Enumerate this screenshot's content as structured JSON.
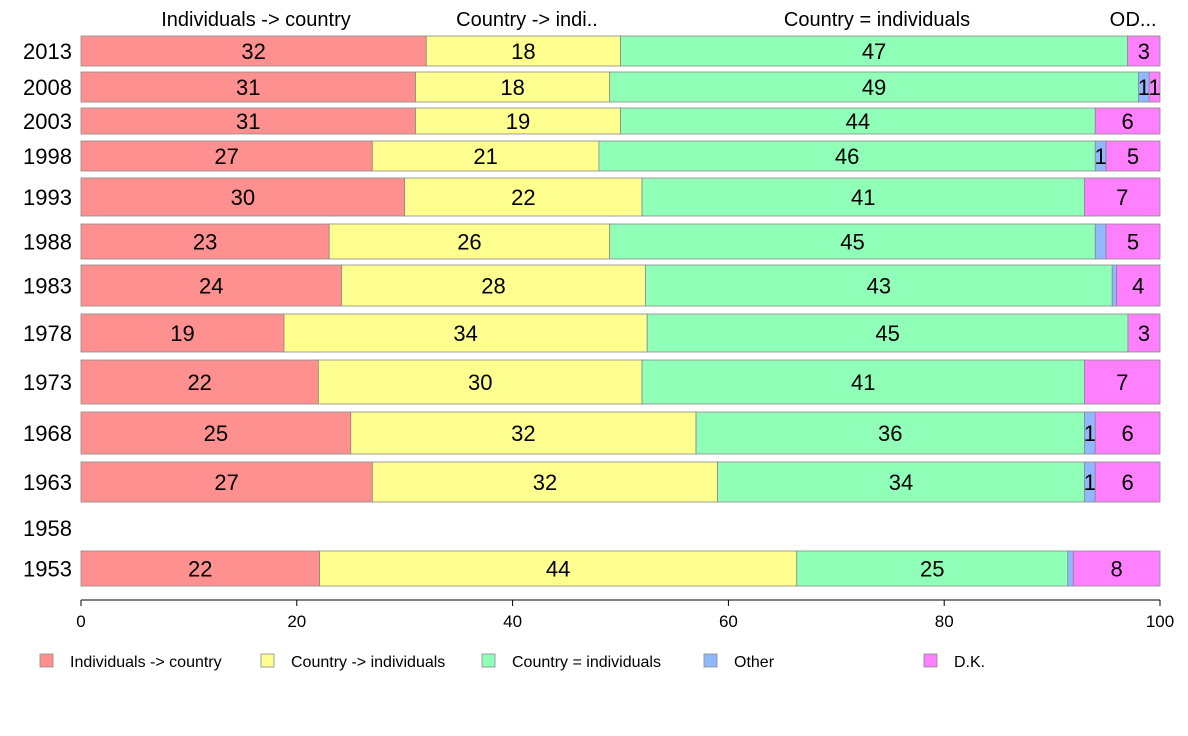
{
  "chart_data": {
    "type": "bar",
    "orientation": "horizontal",
    "stacked": true,
    "categories": [
      "2013",
      "2008",
      "2003",
      "1998",
      "1993",
      "1988",
      "1983",
      "1978",
      "1973",
      "1968",
      "1963",
      "1958",
      "1953"
    ],
    "series": [
      {
        "name": "Individuals -> country",
        "color": "#ff9090",
        "values": [
          32,
          31,
          31,
          27,
          30,
          23,
          24,
          19,
          22,
          25,
          27,
          null,
          22
        ]
      },
      {
        "name": "Country -> individuals",
        "color": "#ffff90",
        "values": [
          18,
          18,
          19,
          21,
          22,
          26,
          28,
          34,
          30,
          32,
          32,
          null,
          44
        ]
      },
      {
        "name": "Country = individuals",
        "color": "#90ffb8",
        "values": [
          47,
          49,
          44,
          46,
          41,
          45,
          43,
          45,
          41,
          36,
          34,
          null,
          25
        ]
      },
      {
        "name": "Other",
        "color": "#90b8ff",
        "values": [
          0,
          1,
          0,
          1,
          0,
          1,
          0.4,
          0,
          0,
          1,
          1,
          null,
          0.5
        ]
      },
      {
        "name": "D.K.",
        "color": "#ff80ff",
        "values": [
          3,
          1,
          6,
          5,
          7,
          5,
          4,
          3,
          7,
          6,
          6,
          null,
          8
        ]
      }
    ],
    "bar_labels": [
      [
        "32",
        "18",
        "47",
        "",
        "3"
      ],
      [
        "31",
        "18",
        "49",
        "1",
        "1"
      ],
      [
        "31",
        "19",
        "44",
        "",
        "6"
      ],
      [
        "27",
        "21",
        "46",
        "1",
        "5"
      ],
      [
        "30",
        "22",
        "41",
        "",
        "7"
      ],
      [
        "23",
        "26",
        "45",
        "",
        "5"
      ],
      [
        "24",
        "28",
        "43",
        "",
        "4"
      ],
      [
        "19",
        "34",
        "45",
        "",
        "3"
      ],
      [
        "22",
        "30",
        "41",
        "",
        "7"
      ],
      [
        "25",
        "32",
        "36",
        "1",
        "6"
      ],
      [
        "27",
        "32",
        "34",
        "1",
        "6"
      ],
      [
        "",
        "",
        "",
        "",
        ""
      ],
      [
        "22",
        "44",
        "25",
        "",
        "8"
      ]
    ],
    "column_headers": [
      "Individuals -> country",
      "Country -> indi..",
      "Country = individuals",
      "O..",
      "D..."
    ],
    "xlim": [
      0,
      100
    ],
    "xticks": [
      "0",
      "20",
      "40",
      "60",
      "80",
      "100"
    ],
    "xlabel": "",
    "ylabel": "",
    "grid": false,
    "legend_position": "bottom"
  }
}
